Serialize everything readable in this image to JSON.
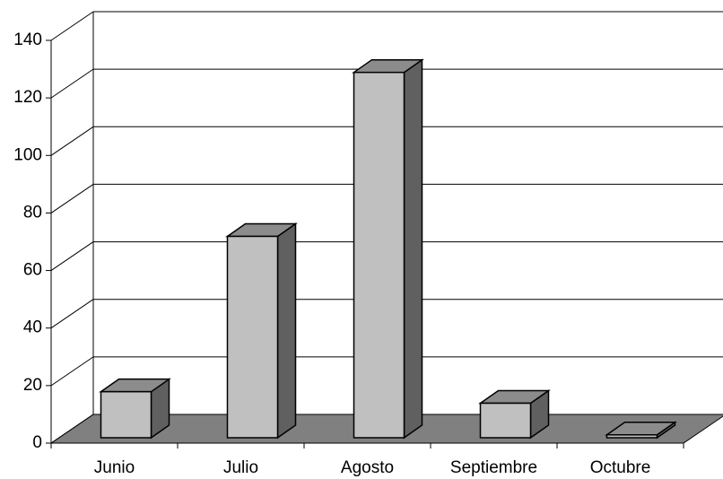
{
  "chart_data": {
    "type": "bar3d",
    "categories": [
      "Junio",
      "Julio",
      "Agosto",
      "Septiembre",
      "Octubre"
    ],
    "values": [
      16,
      70,
      127,
      12,
      1
    ],
    "color": "#c0c0c0",
    "ylim": [
      0,
      140
    ],
    "yticks": [
      0,
      20,
      40,
      60,
      80,
      100,
      120,
      140
    ],
    "grid": true
  }
}
